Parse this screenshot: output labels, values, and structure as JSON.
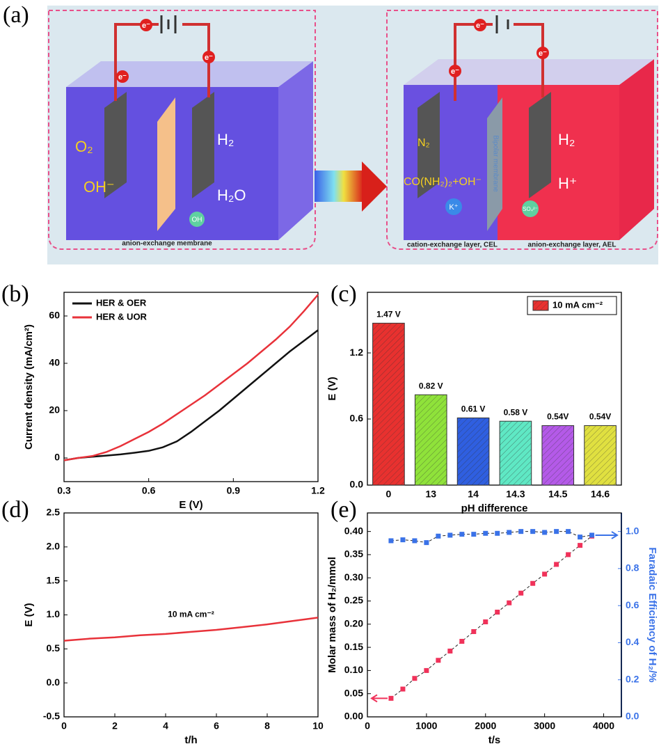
{
  "diagram": {
    "label": "(a)",
    "electron": "e⁻",
    "left": {
      "anode_product": "O₂",
      "anode_reactant": "OH⁻",
      "cathode_product": "H₂",
      "electrolyte": "H₂O",
      "ion": "OH",
      "membrane": "anion-exchange membrane"
    },
    "right": {
      "anode_product": "N₂",
      "anode_reactant": "CO(NH₂)₂+OH⁻",
      "cathode_product": "H₂",
      "cathode_reactant": "H⁺",
      "cation": "K⁺",
      "anion": "SO₄²⁻",
      "membrane": "Bipolar membrane",
      "cel": "cation-exchange layer, CEL",
      "ael": "anion-exchange layer, AEL"
    }
  },
  "chart_data": [
    {
      "panel": "(b)",
      "type": "line",
      "x_label": "E (V)",
      "y_label": "Current density (mA/cm²)",
      "x": [
        0.3,
        0.35,
        0.4,
        0.45,
        0.5,
        0.55,
        0.6,
        0.65,
        0.7,
        0.75,
        0.8,
        0.85,
        0.9,
        0.95,
        1.0,
        1.05,
        1.1,
        1.15,
        1.2
      ],
      "series": [
        {
          "name": "HER & OER",
          "color": "#111111",
          "values": [
            -1,
            0,
            0.5,
            1,
            1.5,
            2.2,
            3,
            4.5,
            7,
            11,
            15.5,
            20,
            25,
            30,
            35,
            40,
            45,
            49.5,
            54
          ]
        },
        {
          "name": "HER & UOR",
          "color": "#e8323a",
          "values": [
            -1,
            0,
            0.8,
            2.5,
            5,
            8,
            11,
            14.5,
            18.5,
            22.5,
            26.5,
            31,
            35.5,
            40,
            45,
            50,
            55.5,
            62,
            69
          ]
        }
      ],
      "xlim": [
        0.3,
        1.2
      ],
      "xticks": [
        0.3,
        0.6,
        0.9,
        1.2
      ],
      "ylim": [
        -10,
        70
      ],
      "yticks": [
        0,
        20,
        40,
        60
      ],
      "legend": "upper left"
    },
    {
      "panel": "(c)",
      "type": "bar",
      "x_label": "pH difference",
      "y_label": "E (V)",
      "categories": [
        "0",
        "13",
        "14",
        "14.3",
        "14.5",
        "14.6"
      ],
      "series": [
        {
          "name": "10 mA cm⁻²",
          "color": "#e8312f",
          "values": [
            1.47,
            0.82,
            0.61,
            0.58,
            0.54,
            0.54
          ]
        }
      ],
      "value_labels": [
        "1.47 V",
        "0.82 V",
        "0.61 V",
        "0.58 V",
        "0.54V",
        "0.54V"
      ],
      "colors": [
        "#e8312f",
        "#8fe23a",
        "#2f5fe0",
        "#5fe8c4",
        "#b45ae8",
        "#e0e040"
      ],
      "hatch": true,
      "ylim": [
        0,
        1.75
      ],
      "yticks": [
        {
          "value": 0,
          "label": "0.0"
        },
        0.6,
        1.2
      ],
      "legend": "upper right"
    },
    {
      "panel": "(d)",
      "type": "line",
      "x_label": "t/h",
      "y_label": "E (V)",
      "annotation": "10 mA cm⁻²",
      "x": [
        0,
        1,
        2,
        3,
        4,
        5,
        6,
        7,
        8,
        9,
        10
      ],
      "series": [
        {
          "color": "#e8323a",
          "values": [
            0.62,
            0.65,
            0.67,
            0.7,
            0.72,
            0.75,
            0.78,
            0.82,
            0.86,
            0.91,
            0.96
          ]
        }
      ],
      "xlim": [
        0,
        10
      ],
      "xticks": [
        0,
        2,
        4,
        6,
        8,
        10
      ],
      "ylim": [
        -0.5,
        2.5
      ],
      "yticks": [
        -0.5,
        {
          "value": 0,
          "label": "0.0"
        },
        0.5,
        {
          "value": 1,
          "label": "1.0"
        },
        1.5,
        {
          "value": 2,
          "label": "2.0"
        },
        2.5
      ]
    },
    {
      "panel": "(e)",
      "type": "scatter",
      "x_label": "t/s",
      "y_label": "Molar mass of H₂/mmol",
      "y2_label": "Faradaic Efficiency of H₂/%",
      "x": [
        400,
        600,
        800,
        1000,
        1200,
        1400,
        1600,
        1800,
        2000,
        2200,
        2400,
        2600,
        2800,
        3000,
        3200,
        3400,
        3600,
        3800
      ],
      "series": [
        {
          "color": "#f0325a",
          "values": [
            0.04,
            0.06,
            0.083,
            0.1,
            0.122,
            0.142,
            0.163,
            0.184,
            0.205,
            0.226,
            0.246,
            0.267,
            0.288,
            0.308,
            0.329,
            0.35,
            0.37,
            0.39
          ]
        },
        {
          "color": "#3a72e8",
          "axis": "y2",
          "values": [
            0.95,
            0.955,
            0.95,
            0.94,
            0.975,
            0.98,
            0.985,
            0.985,
            0.99,
            0.99,
            0.995,
            1.0,
            1.0,
            0.995,
            1.0,
            1.0,
            0.97,
            0.98
          ]
        }
      ],
      "xlim": [
        0,
        4300
      ],
      "xticks": [
        0,
        1000,
        2000,
        3000,
        4000
      ],
      "ylim": [
        0,
        0.44
      ],
      "yticks": [
        {
          "value": 0,
          "label": "0.00"
        },
        0.05,
        {
          "value": 0.1,
          "label": "0.10"
        },
        0.15,
        {
          "value": 0.2,
          "label": "0.20"
        },
        0.25,
        {
          "value": 0.3,
          "label": "0.30"
        },
        0.35,
        {
          "value": 0.4,
          "label": "0.40"
        }
      ],
      "y2lim": [
        0,
        1.1
      ],
      "y2ticks": [
        {
          "value": 0,
          "label": "0.0"
        },
        0.2,
        0.4,
        0.6,
        0.8,
        {
          "value": 1,
          "label": "1.0"
        }
      ]
    }
  ]
}
